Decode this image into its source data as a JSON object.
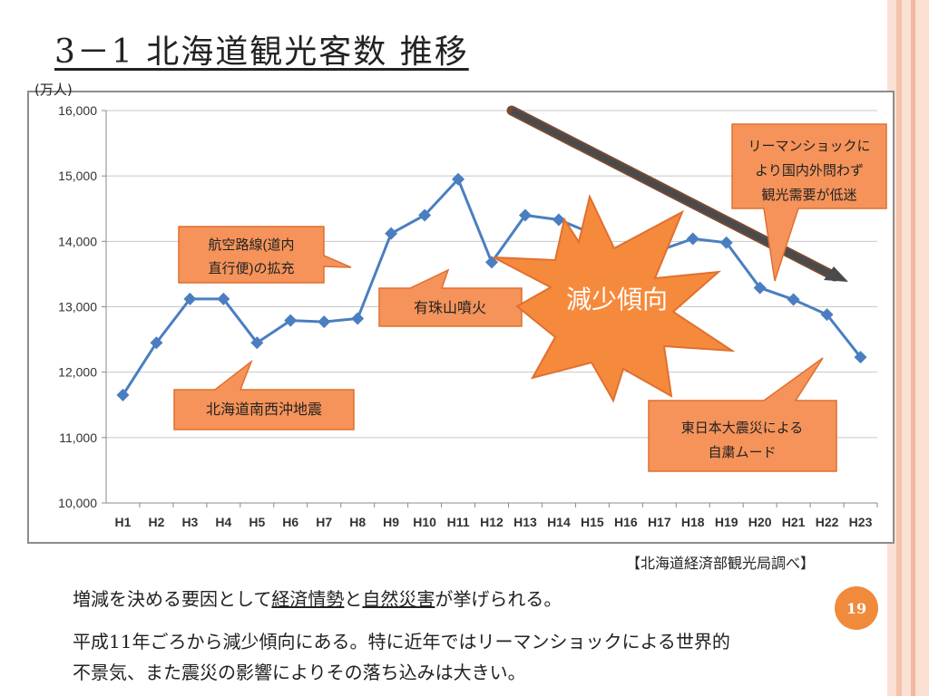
{
  "slide": {
    "title": "3－1  北海道観光客数  推移",
    "unit_label": "(万人)",
    "source": "【北海道経済部観光局調べ】",
    "body": {
      "line1_pre": "増減を決める要因として",
      "line1_u1": "経済情勢",
      "line1_mid": "と",
      "line1_u2": "自然災害",
      "line1_post": "が挙げられる。",
      "line2": "平成11年ごろから減少傾向にある。特に近年ではリーマンショックによる世界的",
      "line3": "不景気、また震災の影響によりその落ち込みは大きい。"
    },
    "page_number": "19"
  },
  "colors": {
    "line": "#4a7ec0",
    "marker": "#4a7ec0",
    "callout_fill": "#f5935a",
    "callout_stroke": "#e07030",
    "burst_fill": "#f58a3c",
    "arrow": "#4a4a4a",
    "stripe_dark": "#f2b8a2",
    "stripe_light": "#fbe0d4"
  },
  "chart_data": {
    "type": "line",
    "categories": [
      "H1",
      "H2",
      "H3",
      "H4",
      "H5",
      "H6",
      "H7",
      "H8",
      "H9",
      "H10",
      "H11",
      "H12",
      "H13",
      "H14",
      "H15",
      "H16",
      "H17",
      "H18",
      "H19",
      "H20",
      "H21",
      "H22",
      "H23"
    ],
    "series": [
      {
        "values": [
          11650,
          12450,
          13120,
          13120,
          12450,
          12790,
          12770,
          12820,
          14120,
          14400,
          14950,
          13680,
          14400,
          14330,
          14120,
          13760,
          13860,
          14040,
          13980,
          13290,
          13110,
          12880,
          12230
        ]
      }
    ],
    "ylim": [
      10000,
      16000
    ],
    "yticks": [
      "10,000",
      "11,000",
      "12,000",
      "13,000",
      "14,000",
      "15,000",
      "16,000"
    ],
    "grid": true,
    "annotations": {
      "domestic_flights": [
        "航空路線(道内",
        "直行便)の拡充"
      ],
      "earthquake": [
        "北海道南西沖地震"
      ],
      "usu": [
        "有珠山噴火"
      ],
      "decline": [
        "減少傾向"
      ],
      "lehman": [
        "リーマンショックに",
        "より国内外問わず",
        "観光需要が低迷"
      ],
      "tohoku": [
        "東日本大震災による",
        "自粛ムード"
      ]
    }
  }
}
